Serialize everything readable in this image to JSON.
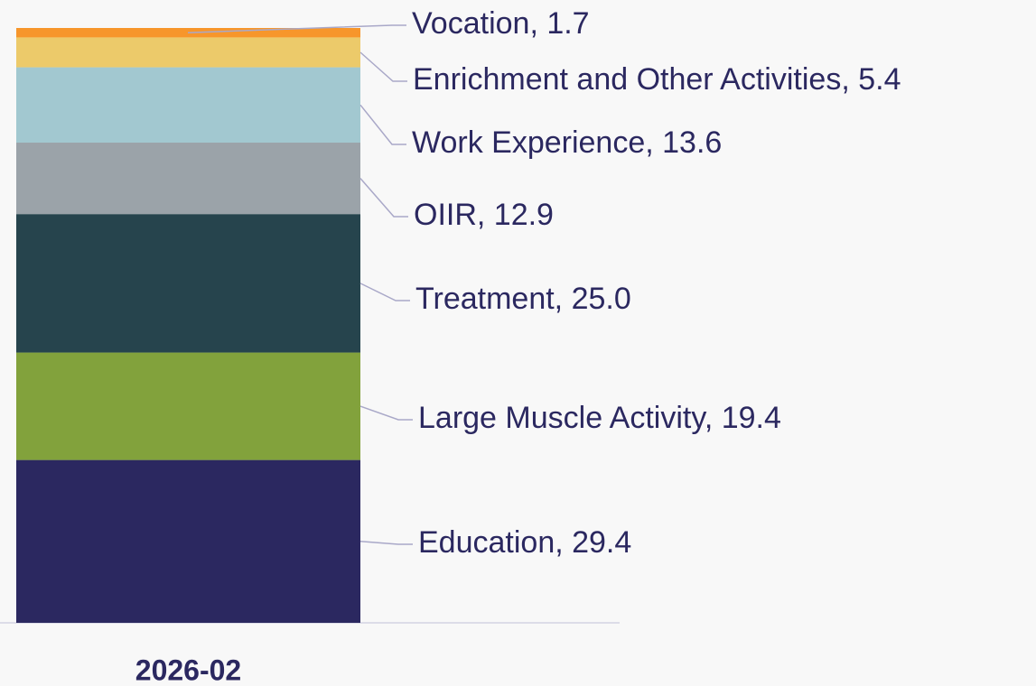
{
  "chart_data": {
    "type": "stacked_bar",
    "categories": [
      "2026-02"
    ],
    "ylim": [
      0,
      107.4
    ],
    "series": [
      {
        "name": "Education",
        "color": "#2b2860",
        "values": [
          29.4
        ],
        "value_labels": [
          "Education, 29.4"
        ]
      },
      {
        "name": "Large Muscle Activity",
        "color": "#82a23c",
        "values": [
          19.4
        ],
        "value_labels": [
          "Large Muscle Activity, 19.4"
        ]
      },
      {
        "name": "Treatment",
        "color": "#26444d",
        "values": [
          25.0
        ],
        "value_labels": [
          "Treatment, 25.0"
        ]
      },
      {
        "name": "OIIR",
        "color": "#9ba3a9",
        "values": [
          12.9
        ],
        "value_labels": [
          "OIIR, 12.9"
        ]
      },
      {
        "name": "Work Experience",
        "color": "#a2c8d0",
        "values": [
          13.6
        ],
        "value_labels": [
          "Work Experience, 13.6"
        ]
      },
      {
        "name": "Enrichment and Other Activities",
        "color": "#ecca6a",
        "values": [
          5.4
        ],
        "value_labels": [
          "Enrichment and Other Activities, 5.4"
        ]
      },
      {
        "name": "Vocation",
        "color": "#f7962b",
        "values": [
          1.7
        ],
        "value_labels": [
          "Vocation, 1.7"
        ]
      }
    ]
  }
}
